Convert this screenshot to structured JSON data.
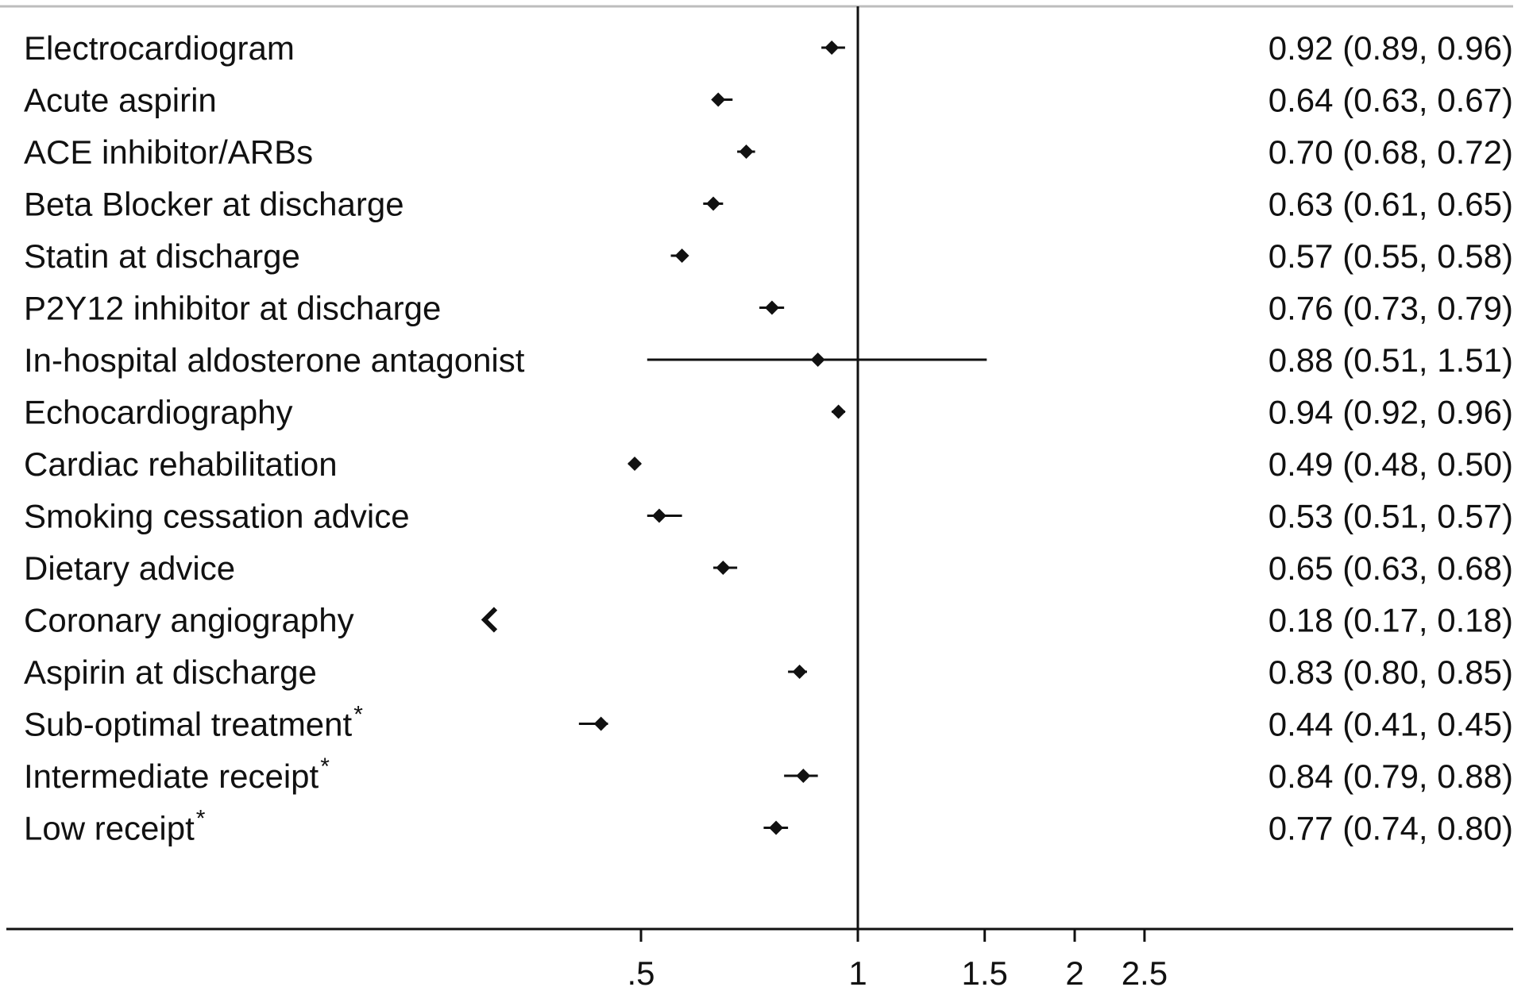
{
  "chart_data": {
    "type": "forest",
    "scale": "log",
    "reference_line": 1,
    "x_ticks": [
      0.5,
      1,
      1.5,
      2,
      2.5
    ],
    "x_tick_labels": [
      ".5",
      "1",
      "1.5",
      "2",
      "2.5"
    ],
    "rows": [
      {
        "label": "Electrocardiogram",
        "asterisk": "",
        "estimate": 0.92,
        "lower": 0.89,
        "upper": 0.96,
        "text": "0.92 (0.89, 0.96)"
      },
      {
        "label": "Acute aspirin",
        "asterisk": "",
        "estimate": 0.64,
        "lower": 0.63,
        "upper": 0.67,
        "text": "0.64 (0.63, 0.67)"
      },
      {
        "label": "ACE inhibitor/ARBs",
        "asterisk": "",
        "estimate": 0.7,
        "lower": 0.68,
        "upper": 0.72,
        "text": "0.70 (0.68, 0.72)"
      },
      {
        "label": "Beta Blocker at discharge",
        "asterisk": "",
        "estimate": 0.63,
        "lower": 0.61,
        "upper": 0.65,
        "text": "0.63 (0.61, 0.65)"
      },
      {
        "label": "Statin at discharge",
        "asterisk": "",
        "estimate": 0.57,
        "lower": 0.55,
        "upper": 0.58,
        "text": "0.57 (0.55, 0.58)"
      },
      {
        "label": "P2Y12 inhibitor at discharge",
        "asterisk": "",
        "estimate": 0.76,
        "lower": 0.73,
        "upper": 0.79,
        "text": "0.76 (0.73, 0.79)"
      },
      {
        "label": "In-hospital aldosterone antagonist",
        "asterisk": "",
        "estimate": 0.88,
        "lower": 0.51,
        "upper": 1.51,
        "text": "0.88 (0.51, 1.51)"
      },
      {
        "label": "Echocardiography",
        "asterisk": "",
        "estimate": 0.94,
        "lower": 0.92,
        "upper": 0.96,
        "text": "0.94 (0.92, 0.96)"
      },
      {
        "label": "Cardiac rehabilitation",
        "asterisk": "",
        "estimate": 0.49,
        "lower": 0.48,
        "upper": 0.5,
        "text": "0.49 (0.48, 0.50)"
      },
      {
        "label": "Smoking cessation advice",
        "asterisk": "",
        "estimate": 0.53,
        "lower": 0.51,
        "upper": 0.57,
        "text": "0.53 (0.51, 0.57)"
      },
      {
        "label": "Dietary advice",
        "asterisk": "",
        "estimate": 0.65,
        "lower": 0.63,
        "upper": 0.68,
        "text": "0.65 (0.63, 0.68)"
      },
      {
        "label": "Coronary angiography",
        "asterisk": "",
        "estimate": 0.18,
        "lower": 0.17,
        "upper": 0.18,
        "text": "0.18 (0.17, 0.18)",
        "off_scale": true
      },
      {
        "label": "Aspirin at discharge",
        "asterisk": "",
        "estimate": 0.83,
        "lower": 0.8,
        "upper": 0.85,
        "text": "0.83 (0.80, 0.85)"
      },
      {
        "label": "Sub-optimal treatment",
        "asterisk": "*",
        "estimate": 0.44,
        "lower": 0.41,
        "upper": 0.45,
        "text": "0.44 (0.41, 0.45)"
      },
      {
        "label": "Intermediate receipt ",
        "asterisk": "*",
        "estimate": 0.84,
        "lower": 0.79,
        "upper": 0.88,
        "text": "0.84 (0.79, 0.88)"
      },
      {
        "label": "Low receipt",
        "asterisk": "*",
        "estimate": 0.77,
        "lower": 0.74,
        "upper": 0.8,
        "text": "0.77 (0.74, 0.80)"
      }
    ]
  }
}
